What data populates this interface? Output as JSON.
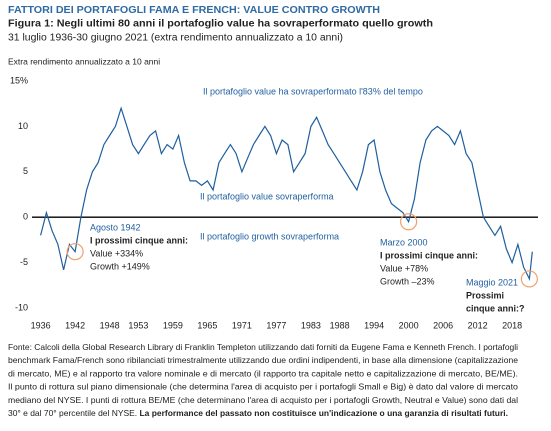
{
  "chart_data": {
    "type": "line",
    "header": "FATTORI DEI PORTAFOGLI FAMA E FRENCH: VALUE CONTRO GROWTH",
    "title": "Figura 1: Negli ultimi 80 anni il portafoglio value ha sovraperformato quello growth",
    "subtitle": "31 luglio 1936-30 giugno 2021 (extra rendimento annualizzato a 10 anni)",
    "y_label": "Extra rendimento annualizzato a 10 anni",
    "x": [
      1936,
      1937,
      1938,
      1939,
      1940,
      1941,
      1942,
      1943,
      1944,
      1945,
      1946,
      1947,
      1948,
      1949,
      1950,
      1951,
      1952,
      1953,
      1954,
      1955,
      1956,
      1957,
      1958,
      1959,
      1960,
      1961,
      1962,
      1963,
      1964,
      1965,
      1966,
      1967,
      1968,
      1969,
      1970,
      1971,
      1972,
      1973,
      1974,
      1975,
      1976,
      1977,
      1978,
      1979,
      1980,
      1981,
      1982,
      1983,
      1984,
      1985,
      1986,
      1987,
      1988,
      1989,
      1990,
      1991,
      1992,
      1993,
      1994,
      1995,
      1996,
      1997,
      1998,
      1999,
      2000,
      2001,
      2002,
      2003,
      2004,
      2005,
      2006,
      2007,
      2008,
      2009,
      2010,
      2011,
      2012,
      2013,
      2014,
      2015,
      2016,
      2017,
      2018,
      2019,
      2020,
      2021,
      2021.5
    ],
    "series": [
      {
        "color": "#1f5f9e",
        "values": [
          -2,
          0.5,
          -1.5,
          -3,
          -5.8,
          -3,
          -3.8,
          0,
          3,
          5,
          6,
          8,
          9,
          10,
          12,
          10,
          8,
          7,
          8,
          9,
          9.5,
          7,
          8,
          7.5,
          9,
          6,
          4,
          4,
          3.5,
          4,
          3,
          6,
          7,
          8,
          7,
          5,
          6.5,
          8,
          9,
          10,
          9,
          7,
          8.5,
          8,
          5,
          6,
          7,
          10,
          11,
          9.5,
          8,
          7,
          6,
          5,
          4,
          3,
          5,
          8,
          8.5,
          5,
          3,
          1.5,
          1,
          0.5,
          -0.5,
          2,
          6,
          8.5,
          9.5,
          10,
          9.5,
          9,
          8,
          9.5,
          7,
          6,
          3,
          0,
          -1,
          -2,
          -1,
          -3.5,
          -5,
          -3,
          -5.5,
          -6.8,
          -3.8
        ]
      }
    ],
    "xlim": [
      1934.5,
      2022.5
    ],
    "xticks": [
      1936,
      1942,
      1948,
      1953,
      1959,
      1965,
      1971,
      1977,
      1983,
      1988,
      1994,
      2000,
      2006,
      2012,
      2018
    ],
    "ylim": [
      -10,
      15
    ],
    "yticks": [
      {
        "value": 15,
        "label": "15%"
      },
      10,
      5,
      0,
      -5,
      -10
    ],
    "grid": false,
    "annotations": {
      "value_share": "Il portafoglio value ha sovraperformato l'83% del tempo",
      "value_outperforms": "Il portafoglio value sovraperforma",
      "growth_outperforms": "Il portafoglio growth sovraperforma",
      "aug1942": [
        "Agosto 1942",
        "I prossimi cinque anni:",
        "Value +334%",
        "Growth +149%"
      ],
      "mar2000": [
        "Marzo 2000",
        "I prossimi cinque anni:",
        "Value +78%",
        "Growth –23%"
      ],
      "may2021": [
        "Maggio 2021",
        "Prossimi",
        "cinque anni:?"
      ]
    },
    "footnote": [
      "Fonte: Calcoli della Global Research Library di Franklin Templeton utilizzando dati forniti da Eugene Fama e Kenneth French. I portafogli",
      "benchmark Fama/French sono ribilanciati trimestralmente utilizzando due ordini indipendenti, in base alla dimensione (capitalizzazione",
      "di mercato, ME) e al rapporto tra valore nominale e di mercato (il rapporto tra capitale netto e capitalizzazione di mercato, BE/ME).",
      "Il punto di rottura sul piano dimensionale (che determina l'area di acquisto per i portafogli Small e Big) è dato dal valore di mercato",
      "mediano del NYSE. I punti di rottura BE/ME (che determinano l'area di acquisto per i portafogli Growth, Neutral e Value) sono dati dal",
      "30° e dal 70° percentile del NYSE. "
    ],
    "footnote_bold": "La performance del passato non costituisce un'indicazione o una garanzia di risultati futuri."
  }
}
